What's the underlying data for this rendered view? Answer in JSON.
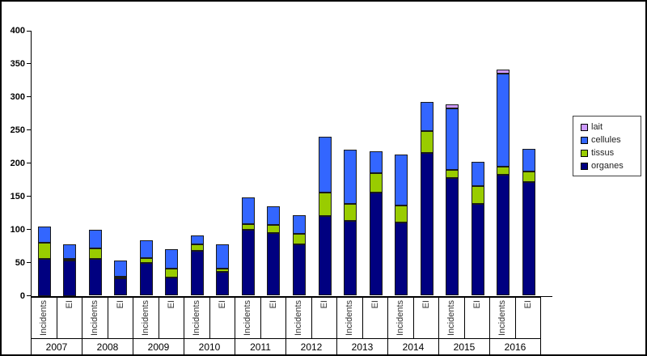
{
  "chart_data": {
    "type": "bar",
    "stacked": true,
    "title": "",
    "ylim": [
      0,
      400
    ],
    "ytick_step": 50,
    "grid": false,
    "legend_position": "right",
    "years": [
      "2007",
      "2008",
      "2009",
      "2010",
      "2011",
      "2012",
      "2013",
      "2014",
      "2015",
      "2016"
    ],
    "bar_types_per_year": [
      "Incidents",
      "EI"
    ],
    "stack_order_bottom_to_top": [
      "organes",
      "tissus",
      "cellules",
      "lait"
    ],
    "series": [
      {
        "name": "organes",
        "color": "#000080",
        "values": [
          55,
          53,
          56,
          26,
          49,
          28,
          68,
          36,
          100,
          95,
          78,
          120,
          113,
          156,
          110,
          216,
          178,
          139,
          182,
          171
        ]
      },
      {
        "name": "tissus",
        "color": "#99CC00",
        "values": [
          25,
          2,
          15,
          3,
          8,
          13,
          9,
          5,
          8,
          12,
          16,
          36,
          26,
          29,
          26,
          32,
          12,
          26,
          13,
          17
        ]
      },
      {
        "name": "cellules",
        "color": "#3366FF",
        "values": [
          25,
          22,
          29,
          24,
          27,
          29,
          14,
          36,
          41,
          28,
          28,
          84,
          81,
          33,
          77,
          45,
          93,
          37,
          140,
          34
        ]
      },
      {
        "name": "lait",
        "color": "#CC99FF",
        "values": [
          0,
          0,
          0,
          0,
          0,
          0,
          0,
          0,
          0,
          0,
          0,
          0,
          0,
          0,
          0,
          0,
          6,
          0,
          6,
          0
        ]
      }
    ],
    "legend": [
      {
        "label": "lait",
        "color": "#CC99FF"
      },
      {
        "label": "cellules",
        "color": "#3366FF"
      },
      {
        "label": "tissus",
        "color": "#99CC00"
      },
      {
        "label": "organes",
        "color": "#000080"
      }
    ]
  },
  "colors": {
    "background": "#FFFFFF",
    "axis": "#000000",
    "bar_border": "#1A1A1A",
    "table_border": "#000000",
    "legend_border": "#404040"
  }
}
